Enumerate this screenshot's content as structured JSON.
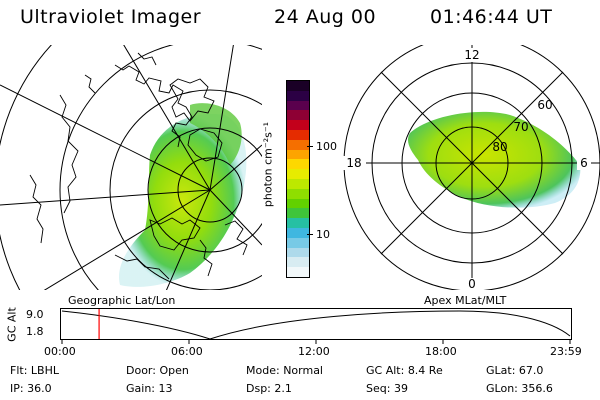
{
  "header": {
    "instrument": "Ultraviolet Imager",
    "date": "24 Aug 00",
    "time": "01:46:44 UT"
  },
  "left_panel": {
    "caption": "Geographic Lat/Lon"
  },
  "right_panel": {
    "caption": "Apex MLat/MLT",
    "mlt_labels": {
      "top": "12",
      "left": "18",
      "right": "6",
      "bottom": "0"
    },
    "lat_labels": [
      "60",
      "70",
      "80"
    ]
  },
  "colorbar": {
    "unit_label": "photon cm⁻²s⁻¹",
    "ticks": [
      "100",
      "10"
    ],
    "colors": [
      "#1a0026",
      "#2b0044",
      "#5a004d",
      "#8e0034",
      "#c3001b",
      "#e52c00",
      "#f56f00",
      "#fda400",
      "#fdd800",
      "#e7ec00",
      "#bde800",
      "#8fde00",
      "#62d100",
      "#3fc53a",
      "#26c0a3",
      "#3fb7e0",
      "#78cae6",
      "#aedaeb",
      "#d8ecf2",
      "#f2f8fa"
    ]
  },
  "altitude_plot": {
    "ylabel": "GC Alt",
    "yticks": [
      "9.0",
      "1.8"
    ],
    "xticks": [
      "00:00",
      "06:00",
      "12:00",
      "18:00",
      "23:59"
    ],
    "current_time_fraction": 0.073,
    "marker_color": "#ff0000"
  },
  "status": {
    "row1": [
      {
        "label": "Flt:",
        "value": "LBHL"
      },
      {
        "label": "Door:",
        "value": "Open"
      },
      {
        "label": "Mode:",
        "value": "Normal"
      },
      {
        "label": "GC Alt:",
        "value": "8.4 Re"
      },
      {
        "label": "GLat:",
        "value": "67.0"
      }
    ],
    "row2": [
      {
        "label": "IP:",
        "value": "36.0"
      },
      {
        "label": "Gain:",
        "value": "13"
      },
      {
        "label": "Dsp:",
        "value": "2.1"
      },
      {
        "label": "Seq:",
        "value": "39"
      },
      {
        "label": "GLon:",
        "value": "356.6"
      }
    ]
  }
}
